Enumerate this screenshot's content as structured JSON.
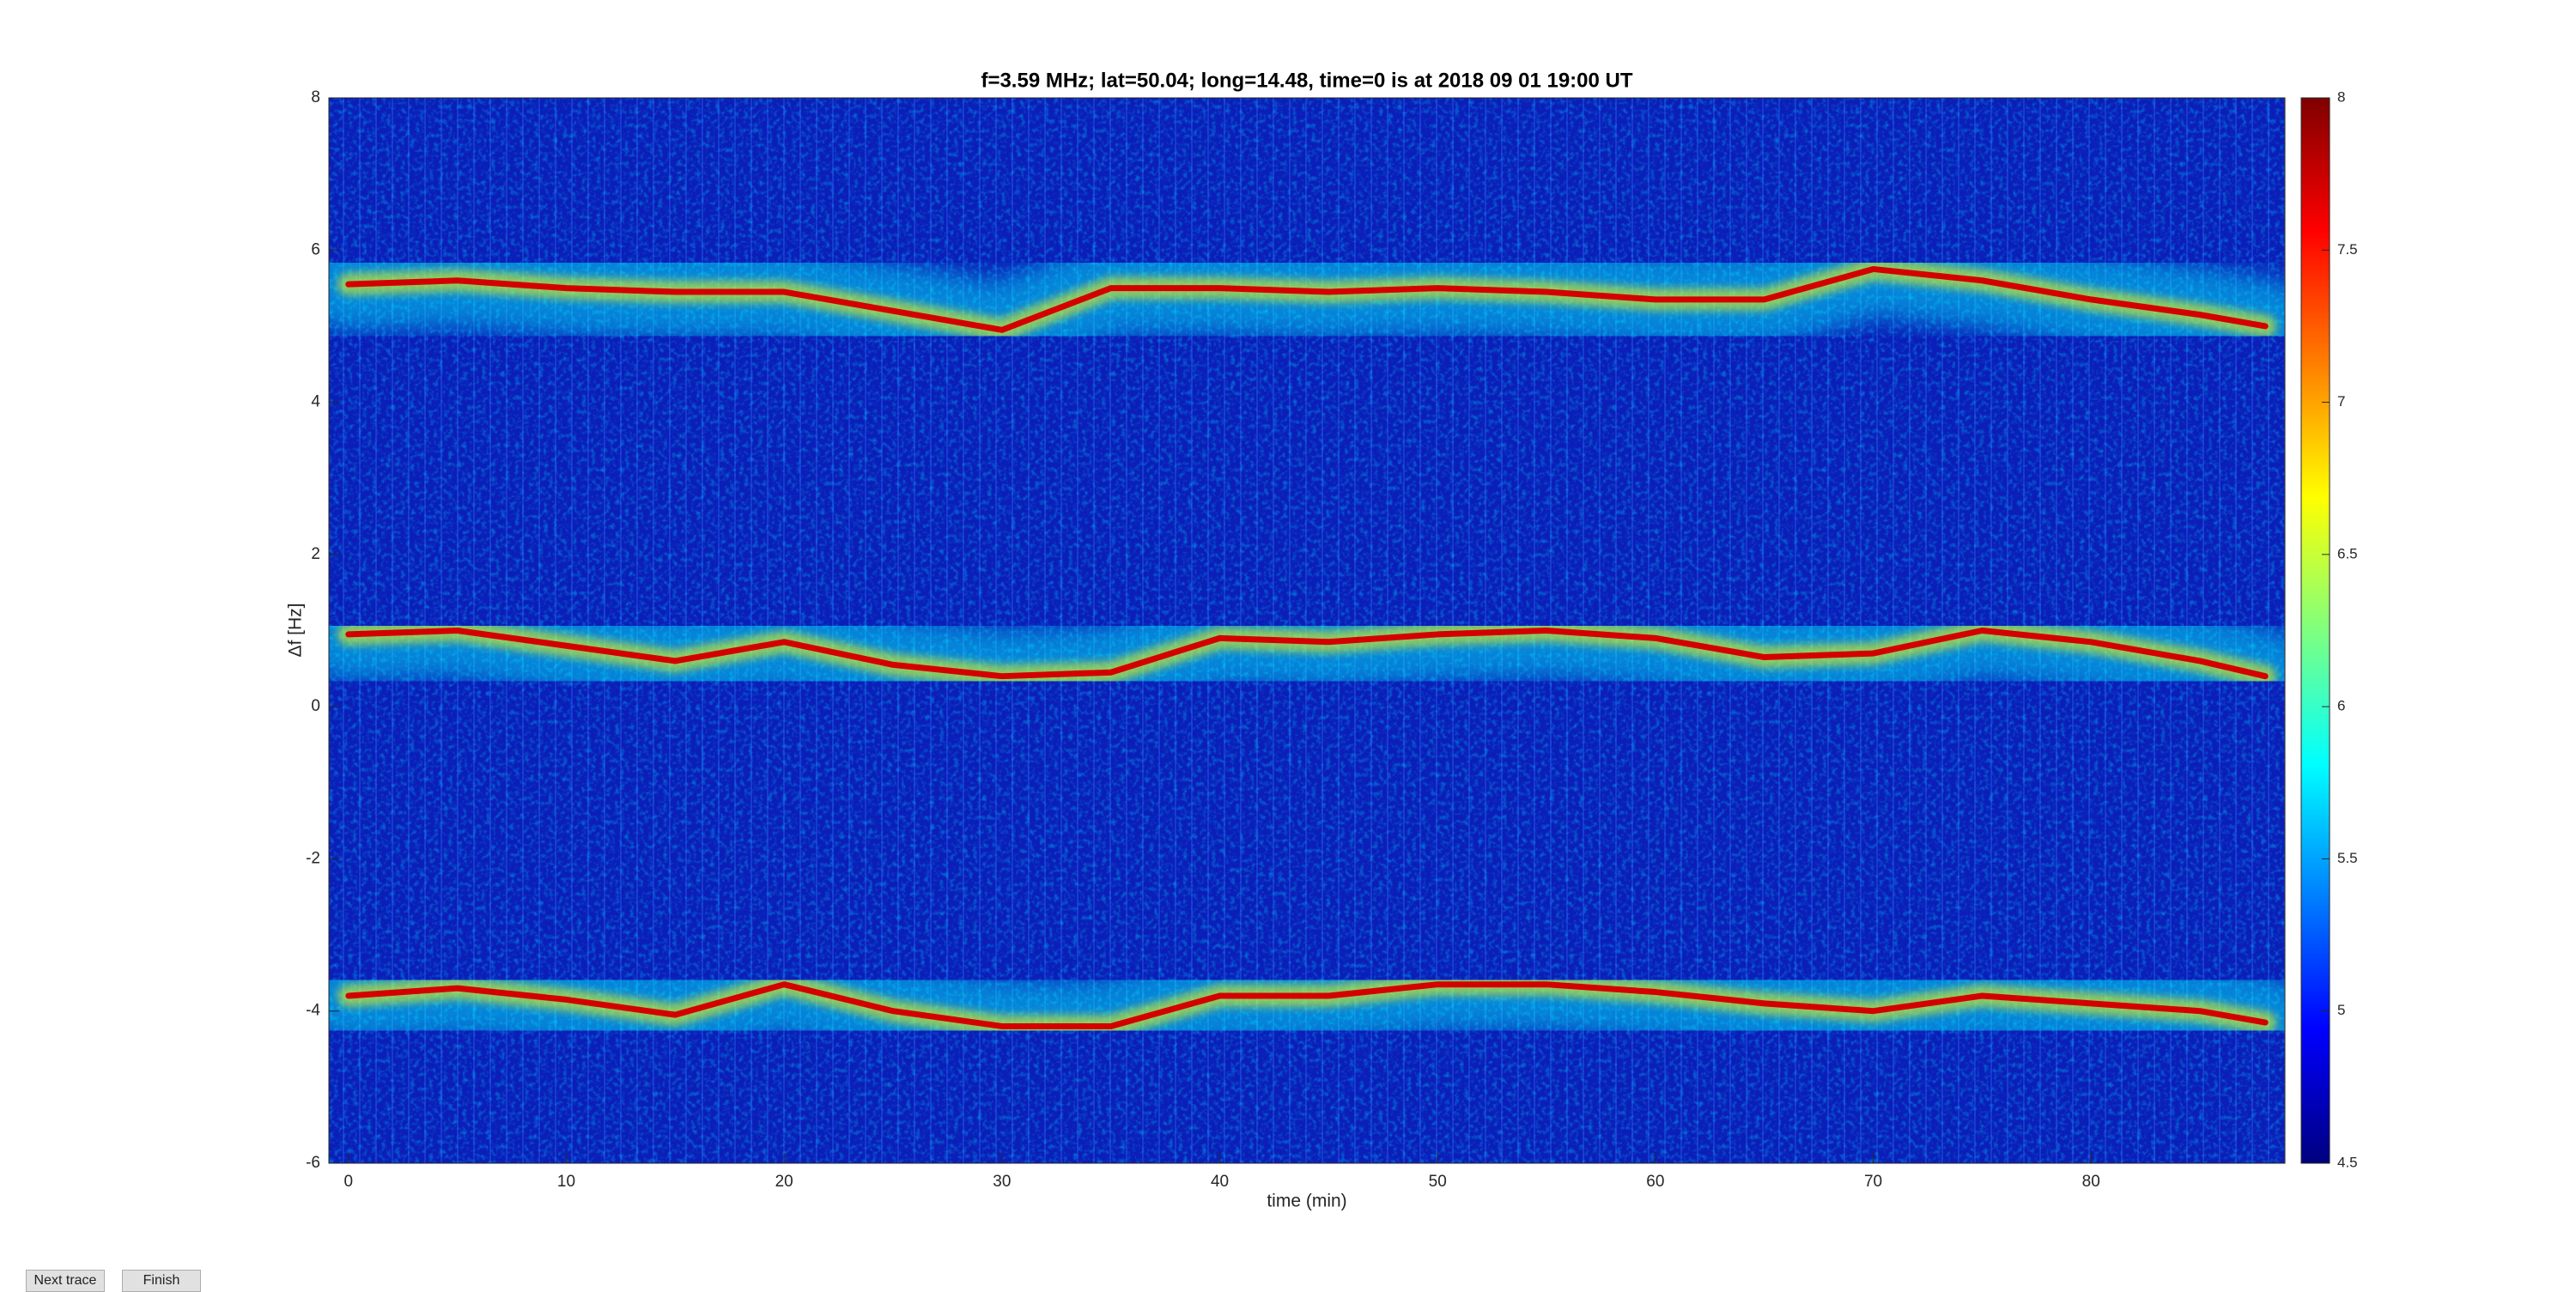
{
  "chart_data": {
    "type": "line",
    "title": "f=3.59 MHz;  lat=50.04; long=14.48, time=0 is at 2018 09 01 19:00 UT",
    "x_label": "time (min)",
    "y_label": "Δf [Hz]",
    "xlim": [
      -0.9,
      88.9
    ],
    "xticks": [
      0,
      10,
      20,
      30,
      40,
      50,
      60,
      70,
      80
    ],
    "ylim": [
      -6,
      8
    ],
    "yticks": [
      -6,
      -4,
      -2,
      0,
      2,
      4,
      6,
      8
    ],
    "colorbar_lim": [
      4.5,
      8
    ],
    "colorbar_ticks": [
      4.5,
      5,
      5.5,
      6,
      6.5,
      7,
      7.5,
      8
    ],
    "colormap": [
      "#00007f",
      "#0000ff",
      "#007fff",
      "#00ffff",
      "#7fff7f",
      "#ffff00",
      "#ff7f00",
      "#ff0000",
      "#7f0000"
    ],
    "x": [
      0,
      5,
      10,
      15,
      20,
      25,
      30,
      35,
      40,
      45,
      50,
      55,
      60,
      65,
      70,
      75,
      80,
      85,
      88
    ],
    "series": [
      {
        "color": "#d40000",
        "values": [
          5.55,
          5.6,
          5.5,
          5.45,
          5.45,
          5.2,
          4.95,
          5.5,
          5.5,
          5.45,
          5.5,
          5.45,
          5.35,
          5.35,
          5.75,
          5.6,
          5.35,
          5.15,
          5.0
        ]
      },
      {
        "color": "#d40000",
        "values": [
          0.95,
          1.0,
          0.8,
          0.6,
          0.85,
          0.55,
          0.4,
          0.45,
          0.9,
          0.85,
          0.95,
          1.0,
          0.9,
          0.65,
          0.7,
          1.0,
          0.85,
          0.6,
          0.4
        ]
      },
      {
        "color": "#d40000",
        "values": [
          -3.8,
          -3.7,
          -3.85,
          -4.05,
          -3.65,
          -4.0,
          -4.2,
          -4.2,
          -3.8,
          -3.8,
          -3.65,
          -3.65,
          -3.75,
          -3.9,
          -4.0,
          -3.8,
          -3.9,
          -4.0,
          -4.15
        ]
      }
    ]
  },
  "buttons": [
    "Next trace",
    "Finish"
  ]
}
